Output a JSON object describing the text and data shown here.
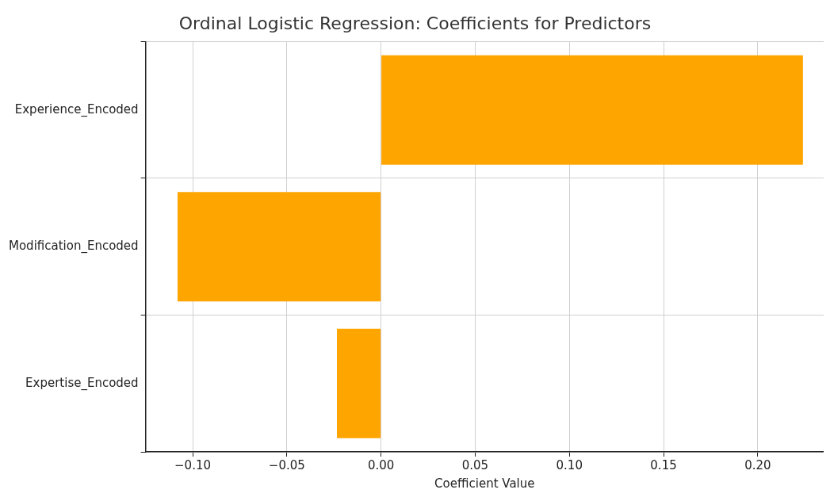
{
  "chart_data": {
    "type": "bar",
    "orientation": "horizontal",
    "title": "Ordinal Logistic Regression: Coefficients for Predictors",
    "xlabel": "Coefficient Value",
    "categories": [
      "Experience_Encoded",
      "Modification_Encoded",
      "Expertise_Encoded"
    ],
    "values": [
      0.224,
      -0.108,
      -0.0234
    ],
    "color": "#ffa500",
    "xlim": [
      -0.125,
      0.235
    ],
    "xticks": [
      {
        "value": -0.1,
        "label": "−0.10"
      },
      {
        "value": -0.05,
        "label": "−0.05"
      },
      {
        "value": 0,
        "label": "0.00"
      },
      {
        "value": 0.05,
        "label": "0.05"
      },
      {
        "value": 0.1,
        "label": "0.10"
      },
      {
        "value": 0.15,
        "label": "0.15"
      },
      {
        "value": 0.2,
        "label": "0.20"
      }
    ],
    "grid": true
  }
}
